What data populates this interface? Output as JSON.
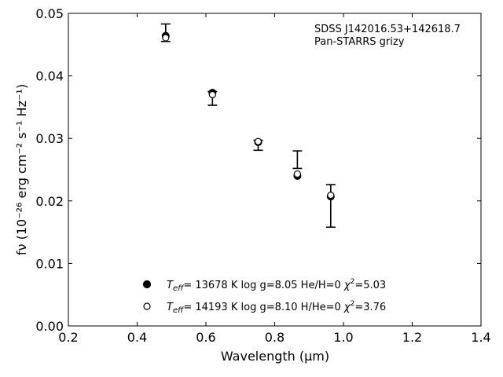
{
  "chart_data": {
    "type": "scatter",
    "title": "",
    "annotation": {
      "line1": "SDSS J142016.53+142618.7",
      "line2": "Pan-STARRS grizy"
    },
    "xlabel": "Wavelength (μm)",
    "ylabel": "fν (10⁻²⁶ erg cm⁻² s⁻¹ Hz⁻¹)",
    "xlim": [
      0.2,
      1.4
    ],
    "ylim": [
      0.0,
      0.05
    ],
    "xticks": [
      0.2,
      0.4,
      0.6,
      0.8,
      1.0,
      1.2,
      1.4
    ],
    "xtick_labels": [
      "0.2",
      "0.4",
      "0.6",
      "0.8",
      "1.0",
      "1.2",
      "1.4"
    ],
    "yticks": [
      0.0,
      0.01,
      0.02,
      0.03,
      0.04,
      0.05
    ],
    "ytick_labels": [
      "0.00",
      "0.01",
      "0.02",
      "0.03",
      "0.04",
      "0.05"
    ],
    "grid": false,
    "observed": {
      "x": [
        0.483,
        0.619,
        0.752,
        0.866,
        0.963
      ],
      "y": [
        0.0469,
        0.0364,
        0.0289,
        0.0266,
        0.0192
      ],
      "yerr": [
        0.0014,
        0.0011,
        0.0008,
        0.0014,
        0.0034
      ]
    },
    "series": [
      {
        "marker": "filled-circle",
        "x": [
          0.483,
          0.619,
          0.752,
          0.866,
          0.963
        ],
        "y": [
          0.0464,
          0.0373,
          0.0294,
          0.024,
          0.0207
        ]
      },
      {
        "marker": "open-circle",
        "x": [
          0.483,
          0.619,
          0.752,
          0.866,
          0.963
        ],
        "y": [
          0.0461,
          0.037,
          0.0295,
          0.0243,
          0.0209
        ]
      }
    ],
    "legend": {
      "position": "bottom-center",
      "entries": [
        {
          "marker": "filled-circle",
          "teff_symbol": "T",
          "teff_subscript": "eff",
          "text": "= 13678 K  log g=8.05  He/H=0  ",
          "chi_symbol": "χ",
          "chi_sup": "2",
          "chi_value": "=5.03"
        },
        {
          "marker": "open-circle",
          "teff_symbol": "T",
          "teff_subscript": "eff",
          "text": "= 14193 K  log g=8.10  H/He=0  ",
          "chi_symbol": "χ",
          "chi_sup": "2",
          "chi_value": "=3.76"
        }
      ]
    },
    "colors": {
      "marker": "#000000",
      "axis": "#000000",
      "background": "#ffffff"
    }
  }
}
